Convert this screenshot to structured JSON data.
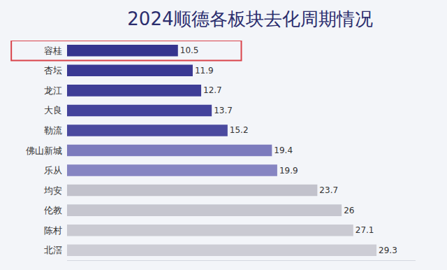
{
  "chart_data": {
    "type": "bar",
    "title": "2024顺德各板块去化周期情况",
    "orientation": "horizontal",
    "categories": [
      "容桂",
      "杏坛",
      "龙江",
      "大良",
      "勒流",
      "佛山新城",
      "乐从",
      "均安",
      "伦教",
      "陈村",
      "北滘"
    ],
    "values": [
      10.5,
      11.9,
      12.7,
      13.7,
      15.2,
      19.4,
      19.9,
      23.7,
      26,
      27.1,
      29.3
    ],
    "colors": [
      "#35348f",
      "#3a3993",
      "#3f3e97",
      "#44439b",
      "#4b4a9f",
      "#7c7bbd",
      "#8685c2",
      "#c2c2cc",
      "#c6c6cf",
      "#cacad2",
      "#cdcdd5"
    ],
    "xlim": [
      0,
      33
    ],
    "grid": false,
    "data_labels": true,
    "tick_labels": "y"
  }
}
